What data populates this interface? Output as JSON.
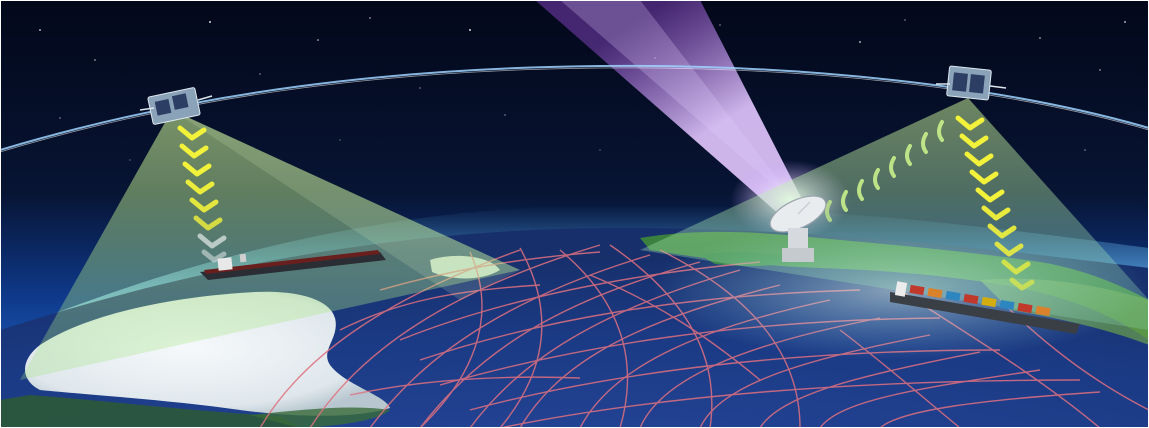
{
  "scene": {
    "subject": "satellite-ais-ship-tracking",
    "colors": {
      "space": "#040a1c",
      "atmosphere": "#1e6fd0",
      "ocean": "#1b3b86",
      "ship_tracks": "#e0707f",
      "footprint": "#aef07a",
      "uplink_beam": "#b878e6",
      "signal_chevrons": "#f2f23a",
      "orbit": "#9fd4ff",
      "ice": "#e9eef2",
      "land": "#3f8a3a"
    },
    "icons": [
      "satellite-left-icon",
      "satellite-right-icon",
      "ground-station-dish-icon",
      "tanker-ship-icon",
      "container-ship-icon"
    ]
  }
}
